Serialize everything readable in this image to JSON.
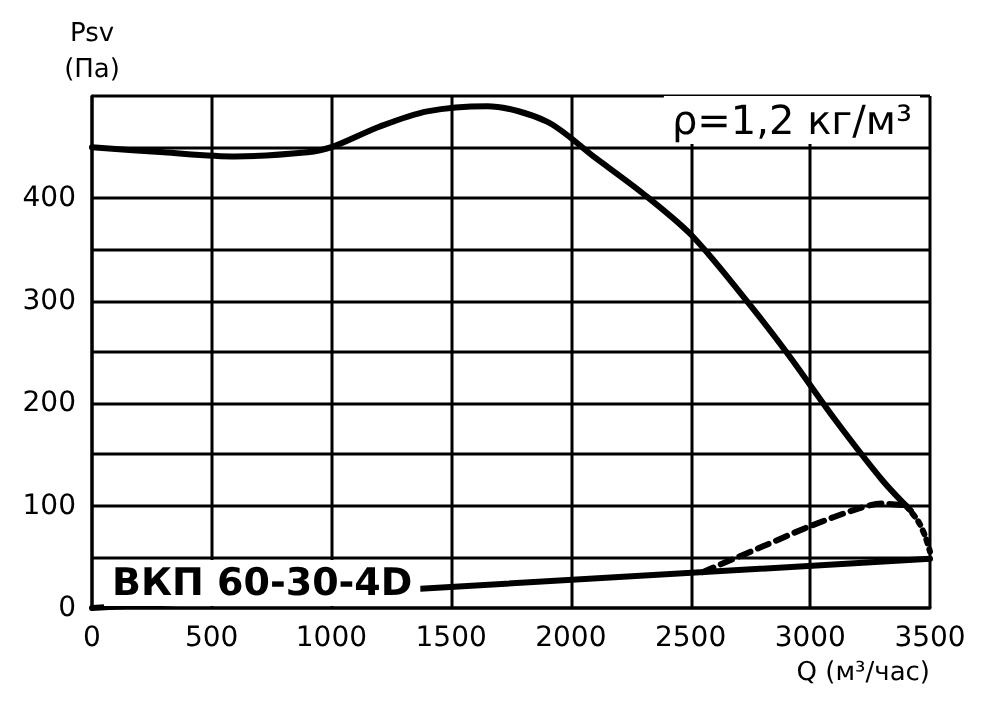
{
  "chart_data": {
    "type": "line",
    "title": "ВКП 60-30-4D",
    "xlabel": "Q (м³/час)",
    "ylabel": "Psv (Па)",
    "annotations": [
      "ρ=1,2 кг/м³"
    ],
    "xlim": [
      0,
      3500
    ],
    "ylim": [
      0,
      500
    ],
    "xticks": [
      0,
      500,
      1000,
      1500,
      2000,
      2500,
      3000,
      3500
    ],
    "yticks": [
      0,
      {
        "value": 50,
        "label": null
      },
      100,
      {
        "value": 150,
        "label": null
      },
      200,
      {
        "value": 250,
        "label": null
      },
      300,
      {
        "value": 350,
        "label": null
      },
      400,
      {
        "value": 450,
        "label": null
      },
      {
        "value": 500,
        "label": null
      }
    ],
    "grid": true,
    "marker": "none",
    "series": [
      {
        "color": "#000000",
        "line_style": "solid",
        "x": [
          0,
          300,
          600,
          900,
          1000,
          1200,
          1400,
          1650,
          1900,
          2100,
          2300,
          2500,
          2700,
          2900,
          3100,
          3300,
          3420
        ],
        "values": [
          450,
          445,
          441,
          445,
          450,
          470,
          485,
          490,
          475,
          440,
          405,
          365,
          310,
          250,
          185,
          125,
          95
        ]
      },
      {
        "color": "#000000",
        "line_style": "dashed",
        "x": [
          2550,
          2800,
          3000,
          3200,
          3300,
          3400
        ],
        "values": [
          35,
          60,
          80,
          97,
          102,
          100
        ]
      },
      {
        "color": "#000000",
        "line_style": "dotted",
        "x": [
          3400,
          3450,
          3480,
          3500
        ],
        "values": [
          100,
          85,
          70,
          55
        ]
      },
      {
        "color": "#000000",
        "line_style": "solid",
        "x": [
          0,
          3500
        ],
        "values": [
          0,
          48
        ]
      }
    ]
  }
}
